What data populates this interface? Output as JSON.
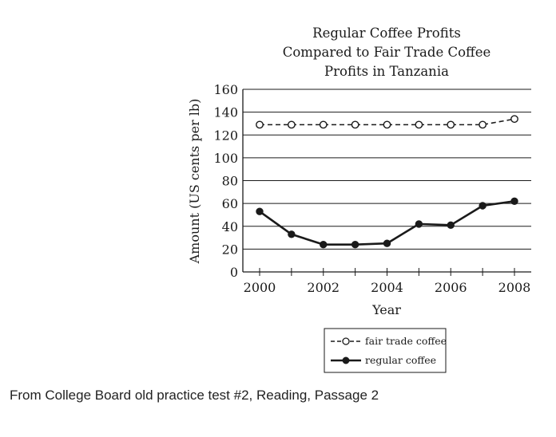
{
  "chart_data": {
    "type": "line",
    "title_lines": [
      "Regular Coffee Profits",
      "Compared to Fair Trade Coffee",
      "Profits in Tanzania"
    ],
    "xlabel": "Year",
    "ylabel": "Amount (US cents per lb)",
    "x": [
      2000,
      2001,
      2002,
      2003,
      2004,
      2005,
      2006,
      2007,
      2008
    ],
    "xticks": [
      2000,
      2002,
      2004,
      2006,
      2008
    ],
    "yticks": [
      0,
      20,
      40,
      60,
      80,
      100,
      120,
      140,
      160
    ],
    "xlim": [
      2000,
      2008
    ],
    "ylim": [
      0,
      160
    ],
    "grid": "horizontal",
    "legend_position": "bottom-center",
    "series": [
      {
        "name": "fair trade coffee",
        "style": "dashed",
        "marker": "open-circle",
        "color": "#1a1a1a",
        "values": [
          129,
          129,
          129,
          129,
          129,
          129,
          129,
          129,
          134
        ]
      },
      {
        "name": "regular coffee",
        "style": "solid",
        "marker": "filled-circle",
        "color": "#1a1a1a",
        "values": [
          53,
          33,
          24,
          24,
          25,
          42,
          41,
          58,
          62
        ]
      }
    ]
  },
  "caption": "From College Board old practice test #2, Reading, Passage 2"
}
